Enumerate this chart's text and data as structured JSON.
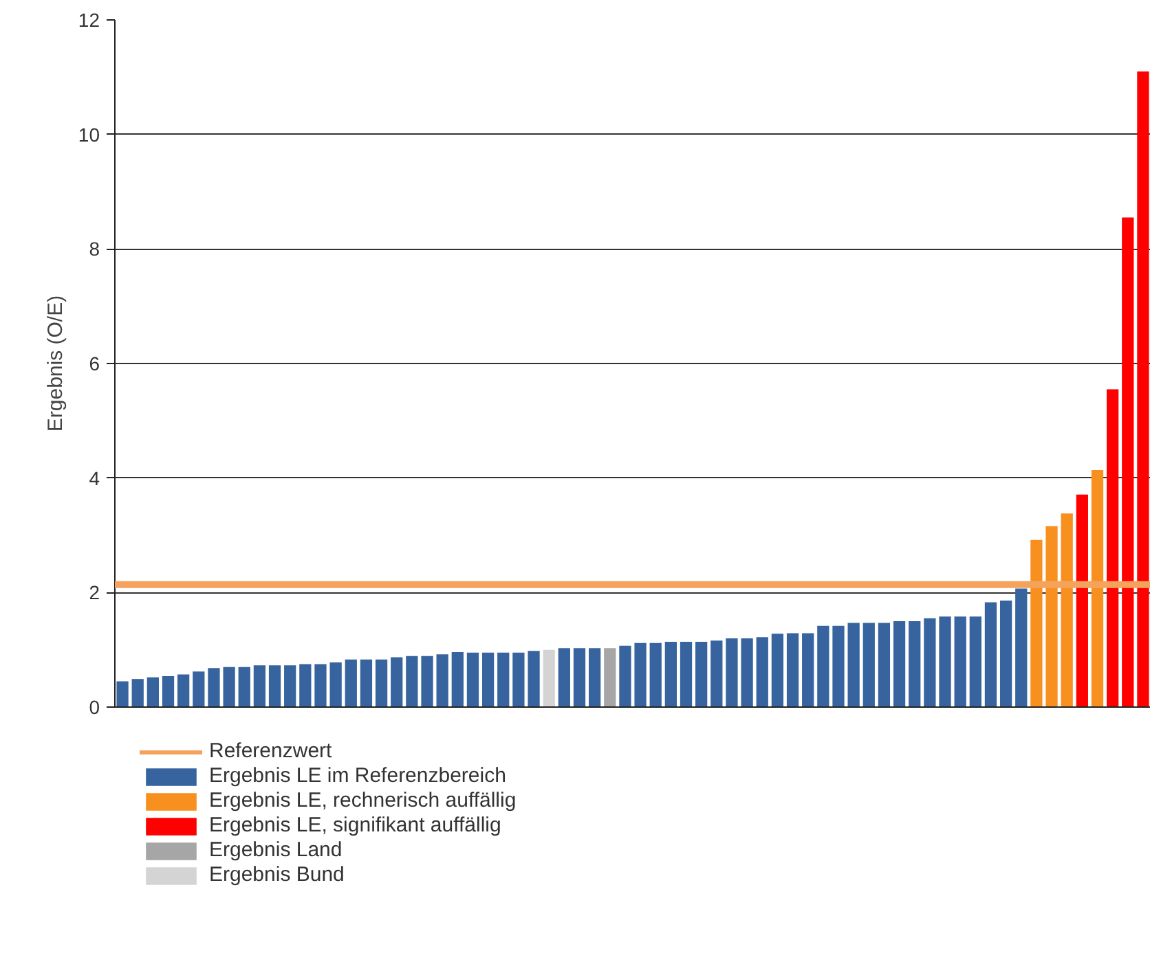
{
  "chart_data": {
    "type": "bar",
    "ylabel": "Ergebnis (O/E)",
    "ylim": [
      0,
      12
    ],
    "yticks": [
      0,
      2,
      4,
      6,
      8,
      10,
      12
    ],
    "grid": "y",
    "legend": "bottom",
    "tick_labels": "y",
    "categories": [
      null,
      null,
      null,
      null,
      null,
      null,
      null,
      null,
      null,
      null,
      null,
      null,
      null,
      null,
      null,
      null,
      null,
      null,
      null,
      null,
      null,
      null,
      null,
      null,
      null,
      null,
      null,
      null,
      null,
      null,
      null,
      null,
      null,
      null,
      null,
      null,
      null,
      null,
      null,
      null,
      null,
      null,
      null,
      null,
      null,
      null,
      null,
      null,
      null,
      null,
      null,
      null,
      null,
      null,
      null,
      null,
      null,
      null,
      null,
      null,
      null,
      null,
      null,
      null,
      null,
      null,
      null,
      null
    ],
    "series": [
      {
        "name": "Ergebnis LE im Referenzbereich",
        "color": "#37649f",
        "values": [
          0.45,
          0.49,
          0.52,
          0.54,
          0.57,
          0.62,
          0.68,
          0.7,
          0.7,
          0.73,
          0.73,
          0.73,
          0.75,
          0.75,
          0.78,
          0.83,
          0.83,
          0.83,
          0.87,
          0.89,
          0.89,
          0.92,
          0.96,
          0.95,
          0.95,
          0.95,
          0.95,
          0.98,
          null,
          1.03,
          1.03,
          1.03,
          null,
          1.07,
          1.12,
          1.12,
          1.14,
          1.14,
          1.14,
          1.16,
          1.2,
          1.2,
          1.22,
          1.28,
          1.29,
          1.29,
          1.42,
          1.42,
          1.47,
          1.47,
          1.47,
          1.5,
          1.5,
          1.55,
          1.58,
          1.58,
          1.58,
          1.83,
          1.86,
          2.07,
          null,
          null,
          null,
          null,
          null,
          null,
          null,
          null
        ]
      },
      {
        "name": "Ergebnis LE, rechnerisch auffällig",
        "color": "#f7901e",
        "values": [
          null,
          null,
          null,
          null,
          null,
          null,
          null,
          null,
          null,
          null,
          null,
          null,
          null,
          null,
          null,
          null,
          null,
          null,
          null,
          null,
          null,
          null,
          null,
          null,
          null,
          null,
          null,
          null,
          null,
          null,
          null,
          null,
          null,
          null,
          null,
          null,
          null,
          null,
          null,
          null,
          null,
          null,
          null,
          null,
          null,
          null,
          null,
          null,
          null,
          null,
          null,
          null,
          null,
          null,
          null,
          null,
          null,
          null,
          null,
          null,
          2.92,
          3.16,
          3.38,
          null,
          4.14,
          null,
          null,
          null
        ]
      },
      {
        "name": "Ergebnis LE, signifikant auffällig",
        "color": "#ff0000",
        "values": [
          null,
          null,
          null,
          null,
          null,
          null,
          null,
          null,
          null,
          null,
          null,
          null,
          null,
          null,
          null,
          null,
          null,
          null,
          null,
          null,
          null,
          null,
          null,
          null,
          null,
          null,
          null,
          null,
          null,
          null,
          null,
          null,
          null,
          null,
          null,
          null,
          null,
          null,
          null,
          null,
          null,
          null,
          null,
          null,
          null,
          null,
          null,
          null,
          null,
          null,
          null,
          null,
          null,
          null,
          null,
          null,
          null,
          null,
          null,
          null,
          null,
          null,
          null,
          3.71,
          null,
          5.55,
          8.55,
          11.1
        ]
      },
      {
        "name": "Ergebnis Land",
        "color": "#a6a6a6",
        "values": [
          null,
          null,
          null,
          null,
          null,
          null,
          null,
          null,
          null,
          null,
          null,
          null,
          null,
          null,
          null,
          null,
          null,
          null,
          null,
          null,
          null,
          null,
          null,
          null,
          null,
          null,
          null,
          null,
          null,
          null,
          null,
          null,
          1.03,
          null,
          null,
          null,
          null,
          null,
          null,
          null,
          null,
          null,
          null,
          null,
          null,
          null,
          null,
          null,
          null,
          null,
          null,
          null,
          null,
          null,
          null,
          null,
          null,
          null,
          null,
          null,
          null,
          null,
          null,
          null,
          null,
          null,
          null,
          null
        ]
      },
      {
        "name": "Ergebnis Bund",
        "color": "#d4d4d4",
        "values": [
          null,
          null,
          null,
          null,
          null,
          null,
          null,
          null,
          null,
          null,
          null,
          null,
          null,
          null,
          null,
          null,
          null,
          null,
          null,
          null,
          null,
          null,
          null,
          null,
          null,
          null,
          null,
          null,
          1.0,
          null,
          null,
          null,
          null,
          null,
          null,
          null,
          null,
          null,
          null,
          null,
          null,
          null,
          null,
          null,
          null,
          null,
          null,
          null,
          null,
          null,
          null,
          null,
          null,
          null,
          null,
          null,
          null,
          null,
          null,
          null,
          null,
          null,
          null,
          null,
          null,
          null,
          null,
          null
        ]
      }
    ],
    "ref_lines": [
      {
        "axis": "y",
        "value": 2.14,
        "label": "Referenzwert",
        "color": "#f5a35c"
      }
    ]
  }
}
